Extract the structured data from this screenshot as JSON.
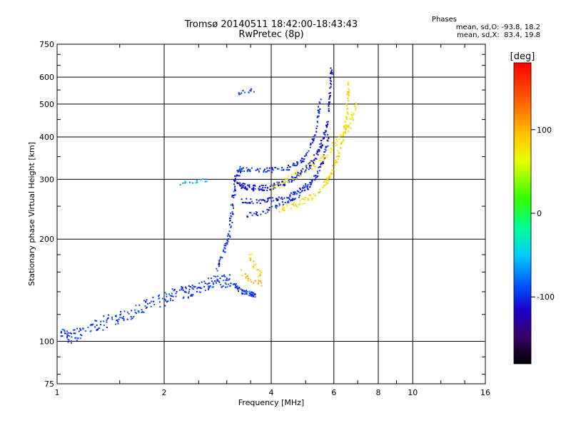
{
  "header": {
    "title_line1": "Tromsø 20140511 18:42:00-18:43:43",
    "title_line2": "RwPretec (8p)"
  },
  "stats": {
    "heading": "Phases",
    "line_o": "mean, sd,O: -93.8, 18.2",
    "line_x": "mean, sd,X:  83.4, 19.8"
  },
  "chart_data": {
    "type": "scatter",
    "xlabel": "Frequency [MHz]",
    "ylabel": "Stationary phase Virtual Height [km]",
    "x_scale": "log",
    "y_scale": "log",
    "xlim": [
      1,
      16
    ],
    "ylim": [
      75,
      750
    ],
    "x_ticks": [
      1,
      2,
      4,
      6,
      8,
      10,
      16
    ],
    "y_ticks": [
      75,
      100,
      200,
      300,
      400,
      500,
      600,
      750
    ],
    "grid": true,
    "colorbar": {
      "label": "[deg]",
      "range": [
        -180,
        180
      ],
      "ticks": [
        100,
        0,
        -100
      ],
      "colormap": "rainbow"
    },
    "traces": [
      {
        "pts": [
          [
            1.02,
            105
          ],
          [
            1.1,
            103
          ],
          [
            1.2,
            108
          ],
          [
            1.35,
            113
          ],
          [
            1.5,
            118
          ],
          [
            1.7,
            124
          ],
          [
            1.9,
            130
          ],
          [
            2.1,
            136
          ],
          [
            2.3,
            140
          ],
          [
            2.5,
            144
          ],
          [
            2.7,
            148
          ],
          [
            2.9,
            150
          ],
          [
            3.1,
            152
          ]
        ],
        "phase": -95,
        "spread": 0.055,
        "density": 22
      },
      {
        "pts": [
          [
            2.8,
            160
          ],
          [
            2.95,
            185
          ],
          [
            3.05,
            205
          ],
          [
            3.1,
            240
          ],
          [
            3.15,
            280
          ],
          [
            3.2,
            310
          ],
          [
            3.3,
            320
          ]
        ],
        "phase": -100,
        "spread": 0.03,
        "density": 16
      },
      {
        "pts": [
          [
            3.1,
            150
          ],
          [
            3.3,
            140
          ],
          [
            3.5,
            138
          ],
          [
            3.6,
            137
          ]
        ],
        "phase": -95,
        "spread": 0.02,
        "density": 20
      },
      {
        "pts": [
          [
            3.2,
            290
          ],
          [
            3.4,
            285
          ],
          [
            3.7,
            282
          ],
          [
            4.0,
            285
          ],
          [
            4.4,
            295
          ],
          [
            4.8,
            310
          ],
          [
            5.2,
            335
          ],
          [
            5.5,
            370
          ],
          [
            5.7,
            420
          ],
          [
            5.85,
            520
          ],
          [
            5.92,
            640
          ]
        ],
        "phase": -110,
        "spread": 0.025,
        "density": 22
      },
      {
        "pts": [
          [
            3.3,
            320
          ],
          [
            3.7,
            318
          ],
          [
            4.1,
            320
          ],
          [
            4.5,
            325
          ],
          [
            4.9,
            340
          ],
          [
            5.2,
            380
          ],
          [
            5.4,
            440
          ],
          [
            5.5,
            520
          ]
        ],
        "phase": -100,
        "spread": 0.02,
        "density": 16
      },
      {
        "pts": [
          [
            3.3,
            260
          ],
          [
            3.7,
            258
          ],
          [
            4.1,
            262
          ],
          [
            4.5,
            268
          ],
          [
            4.9,
            282
          ],
          [
            5.3,
            300
          ],
          [
            5.6,
            340
          ],
          [
            5.8,
            400
          ]
        ],
        "phase": -105,
        "spread": 0.02,
        "density": 16
      },
      {
        "pts": [
          [
            3.4,
            235
          ],
          [
            3.8,
            240
          ],
          [
            4.2,
            250
          ],
          [
            4.6,
            262
          ],
          [
            5.0,
            280
          ],
          [
            5.4,
            310
          ]
        ],
        "phase": -100,
        "spread": 0.02,
        "density": 14
      },
      {
        "pts": [
          [
            2.2,
            290
          ],
          [
            2.45,
            295
          ],
          [
            2.65,
            300
          ]
        ],
        "phase": -60,
        "spread": 0.02,
        "density": 8
      },
      {
        "pts": [
          [
            3.2,
            540
          ],
          [
            3.45,
            548
          ],
          [
            3.6,
            545
          ]
        ],
        "phase": -95,
        "spread": 0.02,
        "density": 6
      },
      {
        "pts": [
          [
            3.5,
            180
          ],
          [
            3.6,
            165
          ],
          [
            3.75,
            155
          ]
        ],
        "phase": 90,
        "spread": 0.03,
        "density": 10
      },
      {
        "pts": [
          [
            3.3,
            160
          ],
          [
            3.5,
            150
          ],
          [
            3.8,
            148
          ]
        ],
        "phase": 100,
        "spread": 0.02,
        "density": 10
      },
      {
        "pts": [
          [
            4.2,
            245
          ],
          [
            4.8,
            255
          ],
          [
            5.3,
            270
          ],
          [
            5.8,
            300
          ],
          [
            6.1,
            340
          ],
          [
            6.4,
            400
          ],
          [
            6.55,
            480
          ],
          [
            6.6,
            600
          ]
        ],
        "phase": 85,
        "spread": 0.025,
        "density": 20
      },
      {
        "pts": [
          [
            4.0,
            280
          ],
          [
            4.5,
            300
          ],
          [
            5.2,
            330
          ],
          [
            5.8,
            360
          ],
          [
            6.3,
            400
          ],
          [
            6.7,
            440
          ],
          [
            6.9,
            500
          ]
        ],
        "phase": 75,
        "spread": 0.03,
        "density": 16
      }
    ]
  }
}
